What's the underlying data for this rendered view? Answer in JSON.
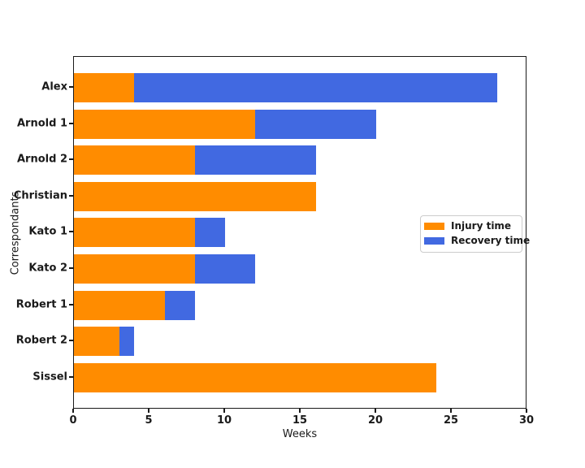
{
  "figure": {
    "background_color": "#ffffff",
    "spine_color": "#1a1a1a"
  },
  "chart_data": {
    "type": "bar",
    "orientation": "horizontal",
    "stacked": true,
    "title": "",
    "xlabel": "Weeks",
    "ylabel": "Correspondants",
    "categories": [
      "Alex",
      "Arnold 1",
      "Arnold 2",
      "Christian",
      "Kato 1",
      "Kato 2",
      "Robert 1",
      "Robert 2",
      "Sissel"
    ],
    "series": [
      {
        "name": "Injury time",
        "color": "#FF8C00",
        "values": [
          4,
          12,
          8,
          16,
          8,
          8,
          6,
          3,
          24
        ]
      },
      {
        "name": "Recovery time",
        "color": "#4169E1",
        "values": [
          24,
          8,
          8,
          0,
          2,
          4,
          2,
          1,
          0
        ]
      }
    ],
    "totals": [
      28,
      20,
      16,
      16,
      10,
      12,
      8,
      4,
      24
    ],
    "xlim": [
      0,
      30
    ],
    "xticks": [
      0,
      5,
      10,
      15,
      20,
      25,
      30
    ],
    "grid": false,
    "legend_position": "center-right"
  }
}
